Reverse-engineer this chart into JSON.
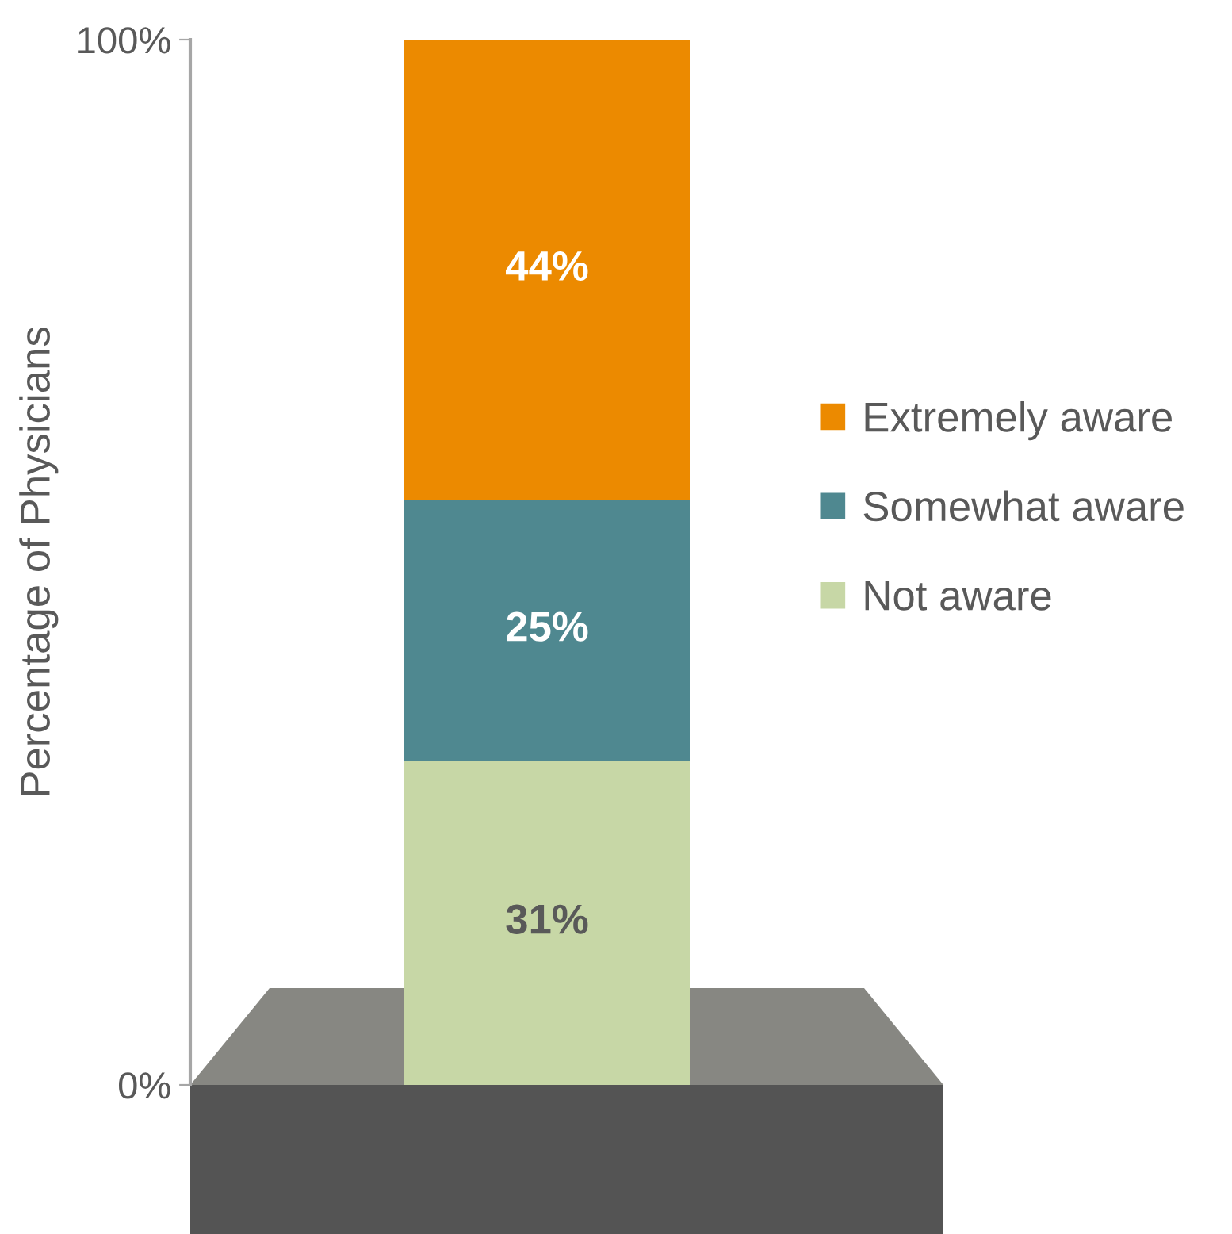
{
  "chart_data": {
    "type": "bar",
    "stacked": true,
    "categories": [
      null
    ],
    "ylabel": "Percentage of Physicians",
    "series": [
      {
        "name": "Not aware",
        "color": "#c7d7a6",
        "values": [
          31
        ]
      },
      {
        "name": "Somewhat aware",
        "color": "#4f8890",
        "values": [
          25
        ]
      },
      {
        "name": "Extremely aware",
        "color": "#ec8a00",
        "values": [
          44
        ]
      }
    ],
    "ylim": [
      0,
      100
    ],
    "yticks": [
      {
        "value": 0,
        "label": "0%"
      },
      {
        "value": 100,
        "label": "100%"
      }
    ],
    "value_labels": [
      [
        "31%"
      ],
      [
        "25%"
      ],
      [
        "44%"
      ]
    ],
    "grid": false,
    "legend": "right",
    "tick_labels": "y"
  }
}
